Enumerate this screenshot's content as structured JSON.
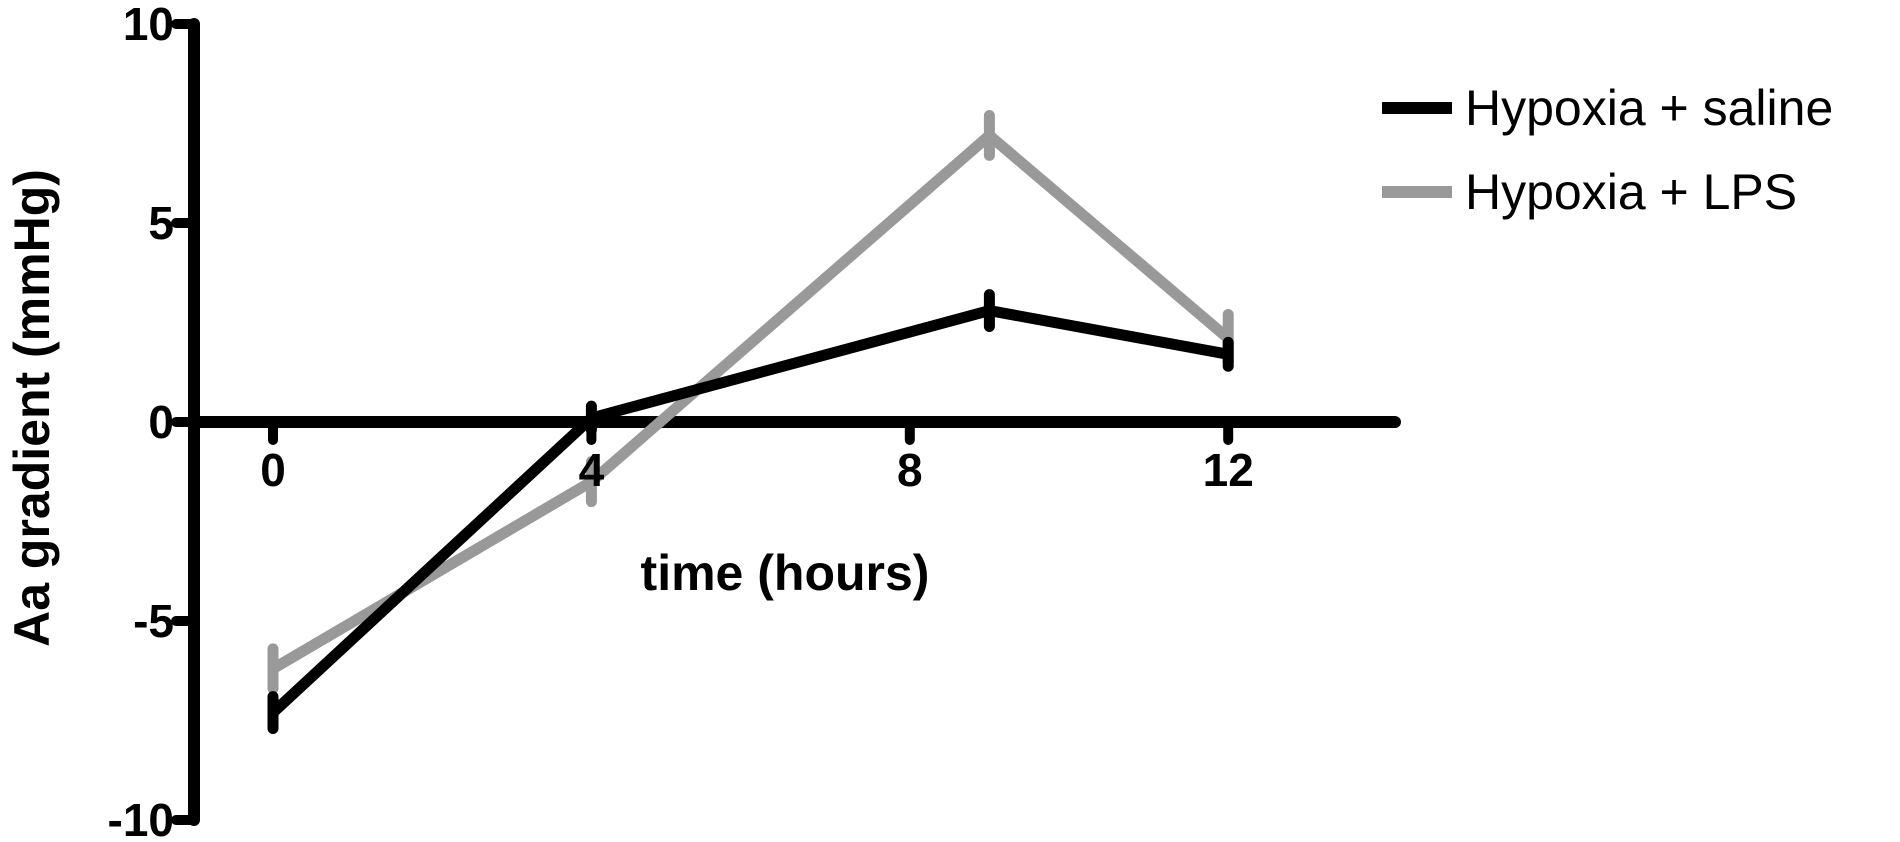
{
  "chart_data": {
    "type": "line",
    "title": "",
    "xlabel": "time (hours)",
    "ylabel": "Aa gradient (mmHg)",
    "xlim": [
      -0.8,
      14.1
    ],
    "ylim": [
      -10,
      10
    ],
    "x_ticks": [
      0,
      4,
      8,
      12
    ],
    "x_tick_labels": [
      "0",
      "4",
      "8",
      "12"
    ],
    "y_ticks": [
      -10,
      -5,
      0,
      5,
      10
    ],
    "y_tick_labels": [
      "-10",
      "-5",
      "0",
      "5",
      "10"
    ],
    "grid": false,
    "legend_position": "top-right",
    "series": [
      {
        "name": "Hypoxia + saline",
        "color": "#000000",
        "x": [
          0,
          4,
          9,
          12
        ],
        "y": [
          -7.3,
          0.1,
          2.8,
          1.7
        ],
        "error": [
          0.4,
          0.3,
          0.4,
          0.3
        ]
      },
      {
        "name": "Hypoxia + LPS",
        "color": "#999999",
        "x": [
          0,
          4,
          9,
          12
        ],
        "y": [
          -6.2,
          -1.5,
          7.2,
          2.1
        ],
        "error": [
          0.5,
          0.5,
          0.5,
          0.6
        ]
      }
    ]
  }
}
